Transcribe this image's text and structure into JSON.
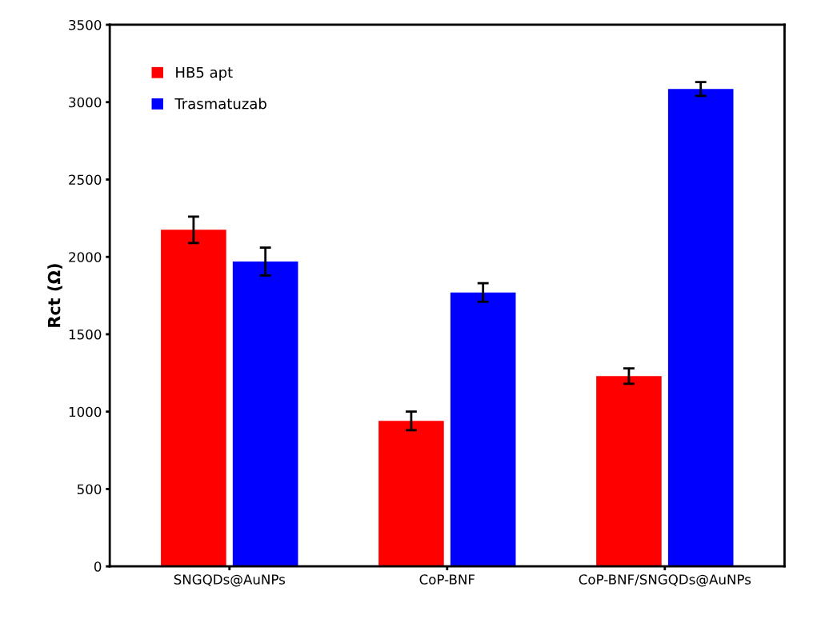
{
  "chart_data": {
    "type": "bar",
    "ylabel": "Rct (Ω)",
    "categories": [
      "SNGQDs@AuNPs",
      "CoP-BNF",
      "CoP-BNF/SNGQDs@AuNPs"
    ],
    "series": [
      {
        "name": "HB5 apt",
        "color": "#ff0000",
        "values": [
          2175,
          940,
          1230
        ],
        "errors": [
          85,
          60,
          50
        ]
      },
      {
        "name": "Trasmatuzab",
        "color": "#0000ff",
        "values": [
          1970,
          1770,
          3085
        ],
        "errors": [
          90,
          60,
          45
        ]
      }
    ],
    "ylim": [
      0,
      3500
    ],
    "yticks": [
      0,
      500,
      1000,
      1500,
      2000,
      2500,
      3000,
      3500
    ],
    "grid": false,
    "legend": "top left"
  }
}
